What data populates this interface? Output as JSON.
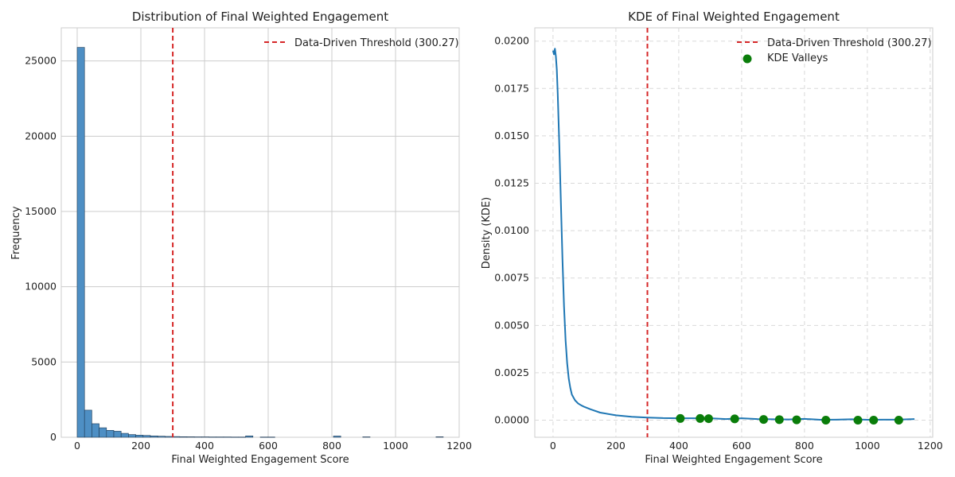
{
  "chart_data": [
    {
      "type": "bar",
      "title": "Distribution of Final Weighted Engagement",
      "xlabel": "Final Weighted Engagement Score",
      "ylabel": "Frequency",
      "xlim": [
        -50,
        1200
      ],
      "ylim": [
        0,
        27200
      ],
      "xticks": [
        0,
        200,
        400,
        600,
        800,
        1000,
        1200
      ],
      "yticks": [
        0,
        5000,
        10000,
        15000,
        20000,
        25000
      ],
      "grid": true,
      "legend_position": "top-right",
      "bin_width": 23,
      "bins": [
        {
          "x0": 0,
          "x1": 23,
          "count": 25900
        },
        {
          "x0": 23,
          "x1": 46,
          "count": 1800
        },
        {
          "x0": 46,
          "x1": 69,
          "count": 900
        },
        {
          "x0": 69,
          "x1": 92,
          "count": 630
        },
        {
          "x0": 92,
          "x1": 115,
          "count": 460
        },
        {
          "x0": 115,
          "x1": 138,
          "count": 400
        },
        {
          "x0": 138,
          "x1": 161,
          "count": 260
        },
        {
          "x0": 161,
          "x1": 184,
          "count": 180
        },
        {
          "x0": 184,
          "x1": 207,
          "count": 140
        },
        {
          "x0": 207,
          "x1": 230,
          "count": 120
        },
        {
          "x0": 230,
          "x1": 253,
          "count": 90
        },
        {
          "x0": 253,
          "x1": 276,
          "count": 70
        },
        {
          "x0": 276,
          "x1": 299,
          "count": 55
        },
        {
          "x0": 299,
          "x1": 322,
          "count": 45
        },
        {
          "x0": 322,
          "x1": 345,
          "count": 35
        },
        {
          "x0": 345,
          "x1": 368,
          "count": 30
        },
        {
          "x0": 368,
          "x1": 391,
          "count": 25
        },
        {
          "x0": 391,
          "x1": 414,
          "count": 25
        },
        {
          "x0": 414,
          "x1": 437,
          "count": 20
        },
        {
          "x0": 437,
          "x1": 460,
          "count": 20
        },
        {
          "x0": 460,
          "x1": 483,
          "count": 20
        },
        {
          "x0": 483,
          "x1": 506,
          "count": 15
        },
        {
          "x0": 506,
          "x1": 529,
          "count": 15
        },
        {
          "x0": 529,
          "x1": 552,
          "count": 90
        },
        {
          "x0": 575,
          "x1": 598,
          "count": 15
        },
        {
          "x0": 598,
          "x1": 621,
          "count": 15
        },
        {
          "x0": 805,
          "x1": 828,
          "count": 80
        },
        {
          "x0": 897,
          "x1": 920,
          "count": 25
        },
        {
          "x0": 1127,
          "x1": 1150,
          "count": 30
        }
      ],
      "threshold": {
        "value": 300.27,
        "label": "Data-Driven Threshold (300.27)",
        "color": "#d62728"
      },
      "bar_color": "#4e8fc4"
    },
    {
      "type": "line",
      "title": "KDE of Final Weighted Engagement",
      "xlabel": "Final Weighted Engagement Score",
      "ylabel": "Density (KDE)",
      "xlim": [
        -58,
        1208
      ],
      "ylim": [
        -0.0009,
        0.0207
      ],
      "xticks": [
        0,
        200,
        400,
        600,
        800,
        1000,
        1200
      ],
      "yticks": [
        "0.0000",
        "0.0025",
        "0.0050",
        "0.0075",
        "0.0100",
        "0.0125",
        "0.0150",
        "0.0175",
        "0.0200"
      ],
      "grid": true,
      "legend_position": "top-right",
      "series": [
        {
          "color": "#1f77b4",
          "x": [
            0,
            3,
            6,
            9,
            12,
            15,
            20,
            25,
            30,
            35,
            40,
            45,
            50,
            55,
            60,
            70,
            80,
            90,
            100,
            120,
            150,
            200,
            250,
            300,
            350,
            400,
            450,
            500,
            550,
            600,
            650,
            700,
            750,
            800,
            850,
            900,
            950,
            1000,
            1050,
            1100,
            1150
          ],
          "y": [
            0.0195,
            0.0193,
            0.0196,
            0.0192,
            0.0185,
            0.0172,
            0.0145,
            0.0115,
            0.0085,
            0.006,
            0.0042,
            0.003,
            0.0022,
            0.0017,
            0.00135,
            0.00105,
            0.00088,
            0.00078,
            0.0007,
            0.00057,
            0.0004,
            0.00026,
            0.00018,
            0.00014,
            0.00011,
            0.0001,
            0.0001,
            0.0001,
            6e-05,
            0.0001,
            6e-05,
            5e-05,
            4e-05,
            7e-05,
            2e-05,
            3e-05,
            5e-05,
            2e-05,
            3e-05,
            3e-05,
            6e-05
          ]
        }
      ],
      "valleys": {
        "name": "KDE Valleys",
        "color": "#0a7d0a",
        "x": [
          405,
          468,
          495,
          578,
          670,
          720,
          775,
          868,
          970,
          1020,
          1100
        ],
        "y": [
          9e-05,
          9e-05,
          8e-05,
          7e-05,
          4e-05,
          3e-05,
          2e-05,
          0.0,
          0.0,
          0.0,
          0.0
        ]
      },
      "threshold": {
        "value": 300.27,
        "label": "Data-Driven Threshold (300.27)",
        "color": "#d62728"
      }
    }
  ]
}
